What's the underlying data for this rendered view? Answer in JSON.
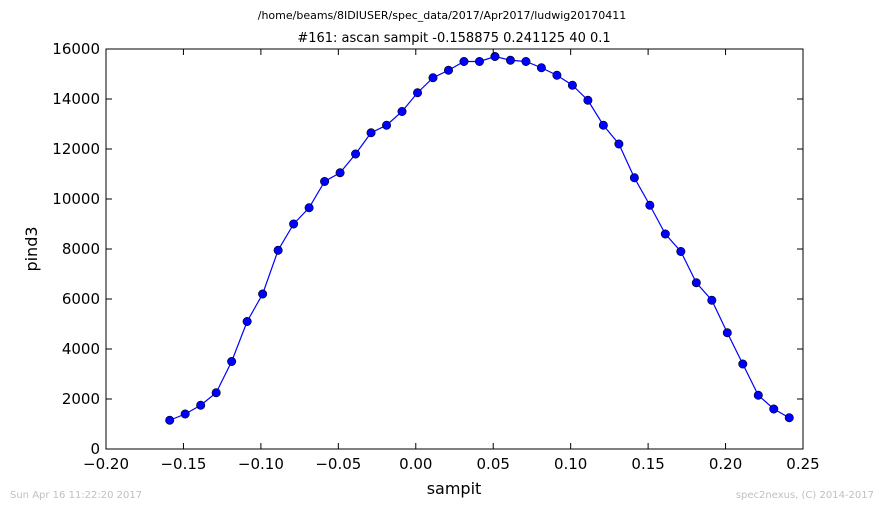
{
  "header": {
    "path": "/home/beams/8IDIUSER/spec_data/2017/Apr2017/ludwig20170411"
  },
  "footer": {
    "timestamp": "Sun Apr 16 11:22:20 2017",
    "credit": "spec2nexus, (C) 2014-2017"
  },
  "chart_data": {
    "type": "line",
    "title": "#161: ascan  sampit -0.158875 0.241125  40 0.1",
    "xlabel": "sampit",
    "ylabel": "pind3",
    "xlim": [
      -0.2,
      0.25
    ],
    "ylim": [
      0,
      16000
    ],
    "xticks": [
      "−0.20",
      "−0.15",
      "−0.10",
      "−0.05",
      "0.00",
      "0.05",
      "0.10",
      "0.15",
      "0.20",
      "0.25"
    ],
    "xtick_values": [
      -0.2,
      -0.15,
      -0.1,
      -0.05,
      0.0,
      0.05,
      0.1,
      0.15,
      0.2,
      0.25
    ],
    "yticks": [
      "0",
      "2000",
      "4000",
      "6000",
      "8000",
      "10000",
      "12000",
      "14000",
      "16000"
    ],
    "ytick_values": [
      0,
      2000,
      4000,
      6000,
      8000,
      10000,
      12000,
      14000,
      16000
    ],
    "grid": false,
    "series": [
      {
        "color": "#0000ff",
        "marker": "circle",
        "x": [
          -0.158875,
          -0.148875,
          -0.138875,
          -0.128875,
          -0.118875,
          -0.108875,
          -0.098875,
          -0.088875,
          -0.078875,
          -0.068875,
          -0.058875,
          -0.048875,
          -0.038875,
          -0.028875,
          -0.018875,
          -0.008875,
          0.001125,
          0.011125,
          0.021125,
          0.031125,
          0.041125,
          0.051125,
          0.061125,
          0.071125,
          0.081125,
          0.091125,
          0.101125,
          0.111125,
          0.121125,
          0.131125,
          0.141125,
          0.151125,
          0.161125,
          0.171125,
          0.181125,
          0.191125,
          0.201125,
          0.211125,
          0.221125,
          0.231125,
          0.241125
        ],
        "y": [
          1150,
          1400,
          1750,
          2250,
          3500,
          5100,
          6200,
          7950,
          9000,
          9650,
          10700,
          11050,
          11800,
          12650,
          12950,
          13500,
          14250,
          14850,
          15150,
          15500,
          15500,
          15700,
          15550,
          15500,
          15250,
          14950,
          14550,
          13950,
          12950,
          12200,
          10850,
          9750,
          8600,
          7900,
          6650,
          5950,
          4650,
          3400,
          2150,
          1600,
          1250
        ]
      }
    ]
  }
}
